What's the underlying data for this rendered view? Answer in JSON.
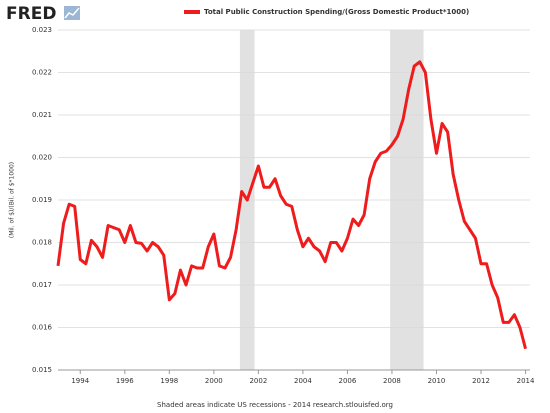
{
  "logo": "FRED",
  "chart_data": {
    "type": "line",
    "y_label": "(Mil. of $)/(Bil. of $*1000)",
    "footer": "Shaded areas indicate US recessions - 2014 research.stlouisfed.org",
    "x": [
      1993,
      1993.25,
      1993.5,
      1993.75,
      1994,
      1994.25,
      1994.5,
      1994.75,
      1995,
      1995.25,
      1995.5,
      1995.75,
      1996,
      1996.25,
      1996.5,
      1996.75,
      1997,
      1997.25,
      1997.5,
      1997.75,
      1998,
      1998.25,
      1998.5,
      1998.75,
      1999,
      1999.25,
      1999.5,
      1999.75,
      2000,
      2000.25,
      2000.5,
      2000.75,
      2001,
      2001.25,
      2001.5,
      2001.75,
      2002,
      2002.25,
      2002.5,
      2002.75,
      2003,
      2003.25,
      2003.5,
      2003.75,
      2004,
      2004.25,
      2004.5,
      2004.75,
      2005,
      2005.25,
      2005.5,
      2005.75,
      2006,
      2006.25,
      2006.5,
      2006.75,
      2007,
      2007.25,
      2007.5,
      2007.75,
      2008,
      2008.25,
      2008.5,
      2008.75,
      2009,
      2009.25,
      2009.5,
      2009.75,
      2010,
      2010.25,
      2010.5,
      2010.75,
      2011,
      2011.25,
      2011.5,
      2011.75,
      2012,
      2012.25,
      2012.5,
      2012.75,
      2013,
      2013.25,
      2013.5,
      2013.75,
      2014
    ],
    "series": [
      {
        "name": "Total Public Construction Spending/(Gross Domestic Product*1000)",
        "color": "#ee1c1c",
        "values": [
          0.01745,
          0.01845,
          0.0189,
          0.01885,
          0.0176,
          0.0175,
          0.01805,
          0.0179,
          0.01765,
          0.0184,
          0.01835,
          0.0183,
          0.018,
          0.0184,
          0.018,
          0.01798,
          0.0178,
          0.018,
          0.0179,
          0.0177,
          0.01665,
          0.0168,
          0.01735,
          0.017,
          0.01745,
          0.0174,
          0.0174,
          0.0179,
          0.0182,
          0.01745,
          0.0174,
          0.01765,
          0.0183,
          0.0192,
          0.019,
          0.0194,
          0.0198,
          0.0193,
          0.0193,
          0.0195,
          0.0191,
          0.0189,
          0.01885,
          0.0183,
          0.0179,
          0.0181,
          0.0179,
          0.0178,
          0.01755,
          0.018,
          0.018,
          0.0178,
          0.0181,
          0.01855,
          0.0184,
          0.01865,
          0.0195,
          0.0199,
          0.0201,
          0.02015,
          0.0203,
          0.0205,
          0.0209,
          0.0216,
          0.02215,
          0.02225,
          0.022,
          0.0209,
          0.0201,
          0.0208,
          0.0206,
          0.0196,
          0.019,
          0.0185,
          0.0183,
          0.0181,
          0.0175,
          0.0175,
          0.017,
          0.0167,
          0.01612,
          0.01612,
          0.0163,
          0.016,
          0.0155
        ]
      }
    ],
    "recessions": [
      [
        2001.17,
        2001.83
      ],
      [
        2007.92,
        2009.42
      ]
    ],
    "recession_color": "#e1e1e1",
    "xlim": [
      1993,
      2014.2
    ],
    "xticks": [
      1994,
      1996,
      1998,
      2000,
      2002,
      2004,
      2006,
      2008,
      2010,
      2012,
      2014
    ],
    "ylim": [
      0.015,
      0.023
    ],
    "yticks": [
      0.015,
      0.016,
      0.017,
      0.018,
      0.019,
      {
        "value": 0.02,
        "label": "0.020"
      },
      0.021,
      0.022,
      0.023
    ],
    "grid": true
  }
}
